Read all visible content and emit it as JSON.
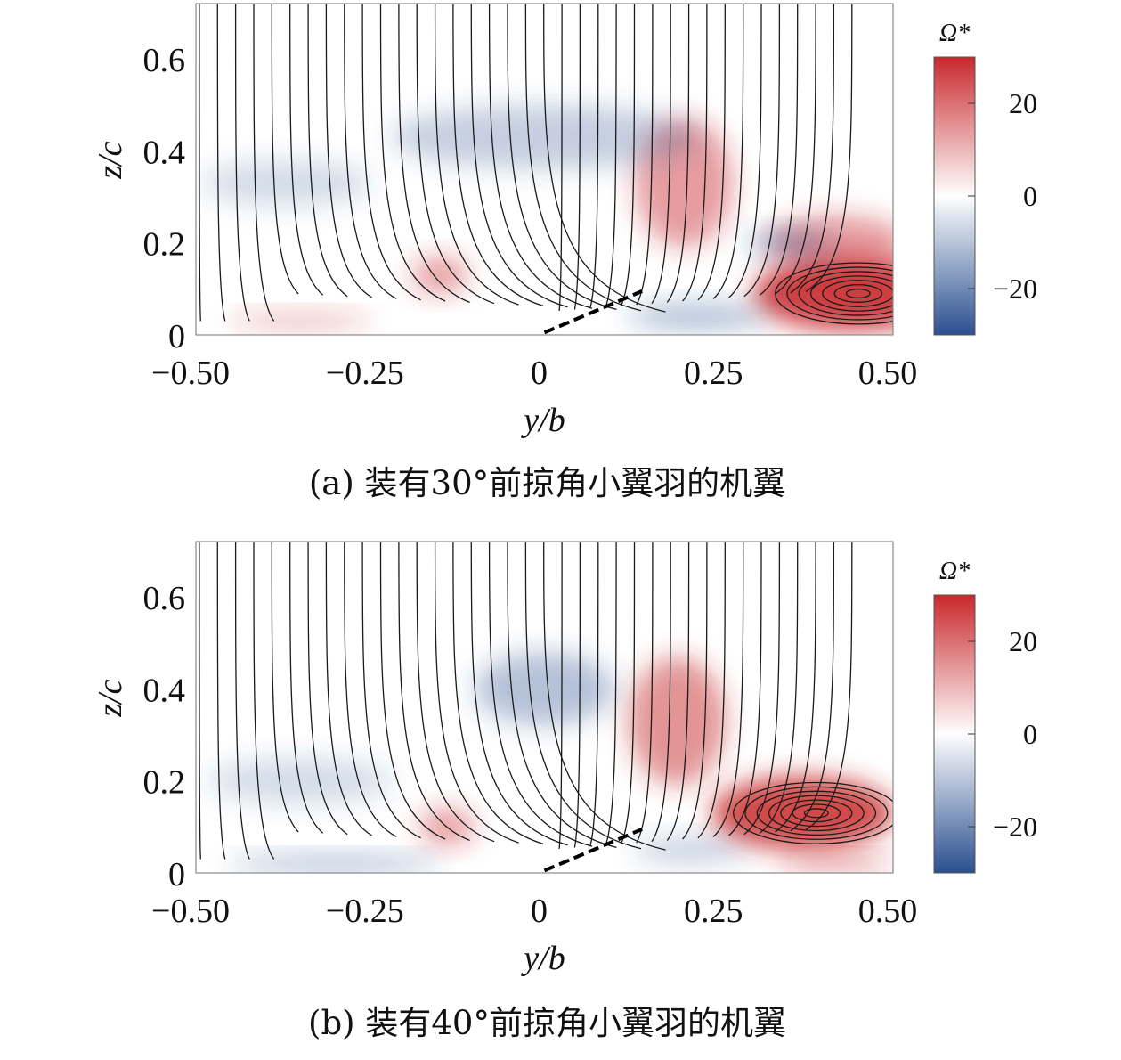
{
  "chart_data": [
    {
      "type": "heatmap",
      "panel": "a",
      "caption": "(a) 装有30°前掠角小翼羽的机翼",
      "xlabel": "y/b",
      "ylabel": "z/c",
      "xlim": [
        -0.5,
        0.5
      ],
      "ylim": [
        0,
        0.72
      ],
      "xticks": [
        -0.5,
        -0.25,
        0,
        0.25,
        0.5
      ],
      "xtick_labels": [
        "−0.50",
        "−0.25",
        "0",
        "0.25",
        "0.50"
      ],
      "yticks": [
        0,
        0.2,
        0.4,
        0.6
      ],
      "ytick_labels": [
        "0",
        "0.2",
        "0.4",
        "0.6"
      ],
      "colorbar": {
        "label": "Ω*",
        "range": [
          -30,
          30
        ],
        "ticks": [
          -20,
          0,
          20
        ],
        "tick_labels": [
          "−20",
          "0",
          "20"
        ],
        "colormap": [
          "#2a4f8f",
          "#ffffff",
          "#c8282c"
        ]
      },
      "vortex_regions": [
        {
          "sign": "positive",
          "y": 0.44,
          "z": 0.09,
          "ry": 0.14,
          "rz": 0.08,
          "strength": 0.9
        },
        {
          "sign": "positive",
          "y": 0.42,
          "z": 0.2,
          "ry": 0.1,
          "rz": 0.06,
          "strength": 0.45
        },
        {
          "sign": "positive",
          "y": 0.2,
          "z": 0.33,
          "ry": 0.07,
          "rz": 0.14,
          "strength": 0.45
        },
        {
          "sign": "negative",
          "y": 0.0,
          "z": 0.43,
          "ry": 0.22,
          "rz": 0.07,
          "strength": 0.28
        },
        {
          "sign": "negative",
          "y": -0.37,
          "z": 0.33,
          "ry": 0.12,
          "rz": 0.05,
          "strength": 0.2
        },
        {
          "sign": "negative",
          "y": 0.35,
          "z": 0.2,
          "ry": 0.06,
          "rz": 0.03,
          "strength": 0.35
        },
        {
          "sign": "positive",
          "y": -0.15,
          "z": 0.13,
          "ry": 0.04,
          "rz": 0.04,
          "strength": 0.45
        },
        {
          "sign": "negative",
          "y": 0.22,
          "z": 0.04,
          "ry": 0.1,
          "rz": 0.03,
          "strength": 0.35
        },
        {
          "sign": "positive",
          "y": -0.35,
          "z": 0.03,
          "ry": 0.1,
          "rz": 0.02,
          "strength": 0.3
        }
      ],
      "vortex_core": {
        "y": 0.45,
        "z": 0.09
      }
    },
    {
      "type": "heatmap",
      "panel": "b",
      "caption": "(b) 装有40°前掠角小翼羽的机翼",
      "xlabel": "y/b",
      "ylabel": "z/c",
      "xlim": [
        -0.5,
        0.5
      ],
      "ylim": [
        0,
        0.72
      ],
      "xticks": [
        -0.5,
        -0.25,
        0,
        0.25,
        0.5
      ],
      "xtick_labels": [
        "−0.50",
        "−0.25",
        "0",
        "0.25",
        "0.50"
      ],
      "yticks": [
        0,
        0.2,
        0.4,
        0.6
      ],
      "ytick_labels": [
        "0",
        "0.2",
        "0.4",
        "0.6"
      ],
      "colorbar": {
        "label": "Ω*",
        "range": [
          -30,
          30
        ],
        "ticks": [
          -20,
          0,
          20
        ],
        "tick_labels": [
          "−20",
          "0",
          "20"
        ],
        "colormap": [
          "#2a4f8f",
          "#ffffff",
          "#c8282c"
        ]
      },
      "vortex_regions": [
        {
          "sign": "positive",
          "y": 0.37,
          "z": 0.13,
          "ry": 0.13,
          "rz": 0.08,
          "strength": 0.85
        },
        {
          "sign": "positive",
          "y": 0.19,
          "z": 0.33,
          "ry": 0.07,
          "rz": 0.14,
          "strength": 0.5
        },
        {
          "sign": "negative",
          "y": 0.0,
          "z": 0.4,
          "ry": 0.1,
          "rz": 0.08,
          "strength": 0.35
        },
        {
          "sign": "negative",
          "y": -0.35,
          "z": 0.2,
          "ry": 0.13,
          "rz": 0.05,
          "strength": 0.2
        },
        {
          "sign": "positive",
          "y": -0.14,
          "z": 0.1,
          "ry": 0.04,
          "rz": 0.04,
          "strength": 0.45
        },
        {
          "sign": "negative",
          "y": -0.3,
          "z": 0.02,
          "ry": 0.15,
          "rz": 0.02,
          "strength": 0.35
        },
        {
          "sign": "positive",
          "y": 0.42,
          "z": 0.02,
          "ry": 0.08,
          "rz": 0.02,
          "strength": 0.4
        },
        {
          "sign": "negative",
          "y": 0.21,
          "z": 0.05,
          "ry": 0.08,
          "rz": 0.03,
          "strength": 0.25
        }
      ],
      "vortex_core": {
        "y": 0.39,
        "z": 0.13
      }
    }
  ]
}
